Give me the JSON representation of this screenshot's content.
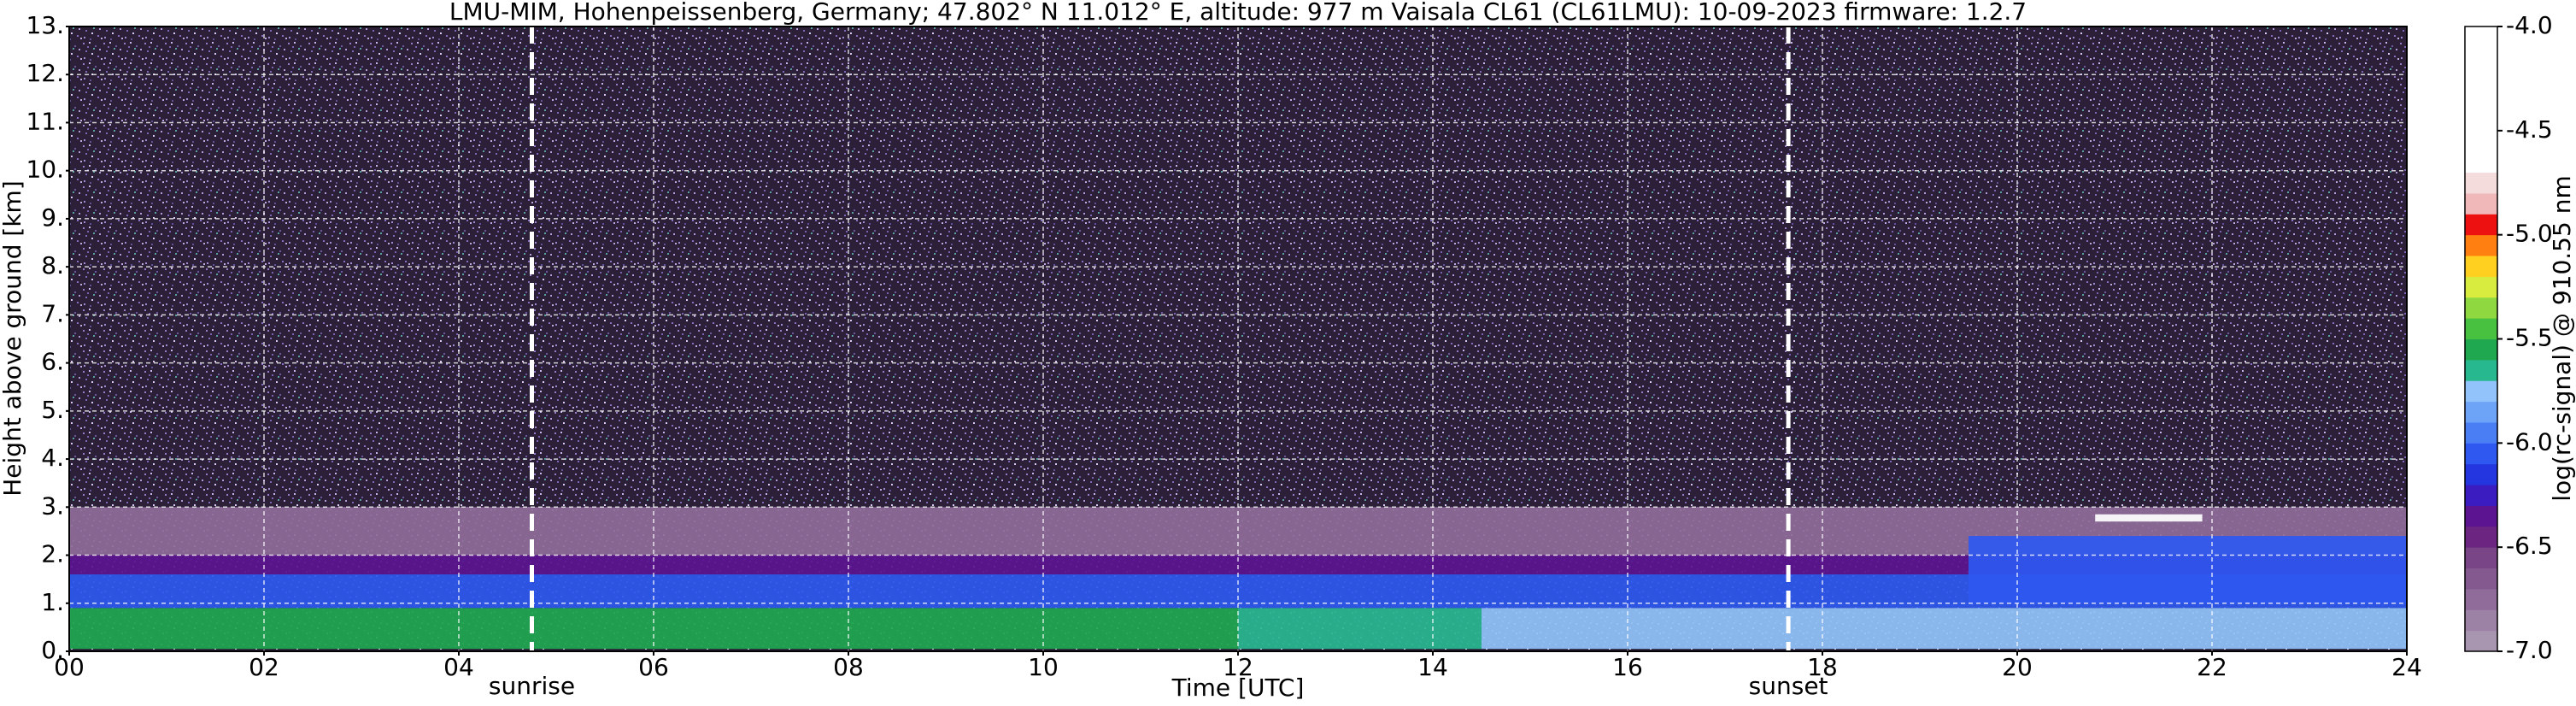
{
  "chart_data": {
    "type": "heatmap",
    "title": "LMU-MIM, Hohenpeissenberg, Germany; 47.802° N 11.012° E, altitude: 977 m    Vaisala CL61 (CL61LMU): 10-09-2023    firmware: 1.2.7",
    "x_label": "Time [UTC]",
    "y_label": "Height above ground [km]",
    "colorbar_label": "log(rc-signal) @ 910.55 nm",
    "xlim": [
      0,
      24
    ],
    "xticks": [
      {
        "value": 0,
        "label": "00"
      },
      {
        "value": 2,
        "label": "02"
      },
      {
        "value": 4,
        "label": "04"
      },
      {
        "value": 6,
        "label": "06"
      },
      {
        "value": 8,
        "label": "08"
      },
      10,
      12,
      14,
      16,
      18,
      20,
      22,
      24
    ],
    "ylim": [
      0,
      13
    ],
    "yticks": [
      {
        "value": 0,
        "label": "0."
      },
      {
        "value": 1,
        "label": "1."
      },
      {
        "value": 2,
        "label": "2."
      },
      {
        "value": 3,
        "label": "3."
      },
      {
        "value": 4,
        "label": "4."
      },
      {
        "value": 5,
        "label": "5."
      },
      {
        "value": 6,
        "label": "6."
      },
      {
        "value": 7,
        "label": "7."
      },
      {
        "value": 8,
        "label": "8."
      },
      {
        "value": 9,
        "label": "9."
      },
      {
        "value": 10,
        "label": "10."
      },
      {
        "value": 11,
        "label": "11."
      },
      {
        "value": 12,
        "label": "12."
      },
      {
        "value": 13,
        "label": "13."
      }
    ],
    "grid": true,
    "clim": [
      -7,
      -4
    ],
    "cticks": [
      {
        "value": -7,
        "label": "-7.0"
      },
      {
        "value": -6.5,
        "label": "-6.5"
      },
      {
        "value": -6,
        "label": "-6.0"
      },
      {
        "value": -5.5,
        "label": "-5.5"
      },
      {
        "value": -5,
        "label": "-5.0"
      },
      {
        "value": -4.5,
        "label": "-4.5"
      },
      {
        "value": -4,
        "label": "-4.0"
      }
    ],
    "colormap": [
      "#a895b0",
      "#9c82a5",
      "#8f6c9a",
      "#84598f",
      "#7a4587",
      "#6c2580",
      "#5c1490",
      "#3a1cc0",
      "#2436e0",
      "#2e58f0",
      "#4a7ef5",
      "#6ea4f8",
      "#92c4fb",
      "#28b890",
      "#20a850",
      "#48c040",
      "#90d840",
      "#d8ec40",
      "#ffd020",
      "#ff8010",
      "#ee1111",
      "#f0b8b8",
      "#f4dcdc",
      "#ffffff",
      "#ffffff",
      "#ffffff",
      "#ffffff",
      "#ffffff",
      "#ffffff",
      "#ffffff"
    ],
    "layers": [
      {
        "x": [
          0,
          24
        ],
        "y": [
          2,
          3
        ],
        "value": -6.75
      },
      {
        "x": [
          0,
          24
        ],
        "y": [
          1.6,
          2
        ],
        "value": -6.35
      },
      {
        "x": [
          0,
          24
        ],
        "y": [
          0.9,
          1.6
        ],
        "value": -6.05
      },
      {
        "x": [
          0,
          12
        ],
        "y": [
          0.05,
          0.9
        ],
        "value": -5.55
      },
      {
        "x": [
          12,
          14.5
        ],
        "y": [
          0.05,
          0.9
        ],
        "value": -5.65
      },
      {
        "x": [
          14.5,
          24
        ],
        "y": [
          0.05,
          0.9
        ],
        "value": -5.75
      },
      {
        "x": [
          19.5,
          24
        ],
        "y": [
          1,
          2.4
        ],
        "value": -6.05
      },
      {
        "x": [
          20.8,
          21.9
        ],
        "y": [
          2.7,
          2.85
        ],
        "value": -4.3
      }
    ],
    "events": [
      {
        "x": 4.75,
        "label": "sunrise"
      },
      {
        "x": 17.65,
        "label": "sunset"
      }
    ]
  }
}
